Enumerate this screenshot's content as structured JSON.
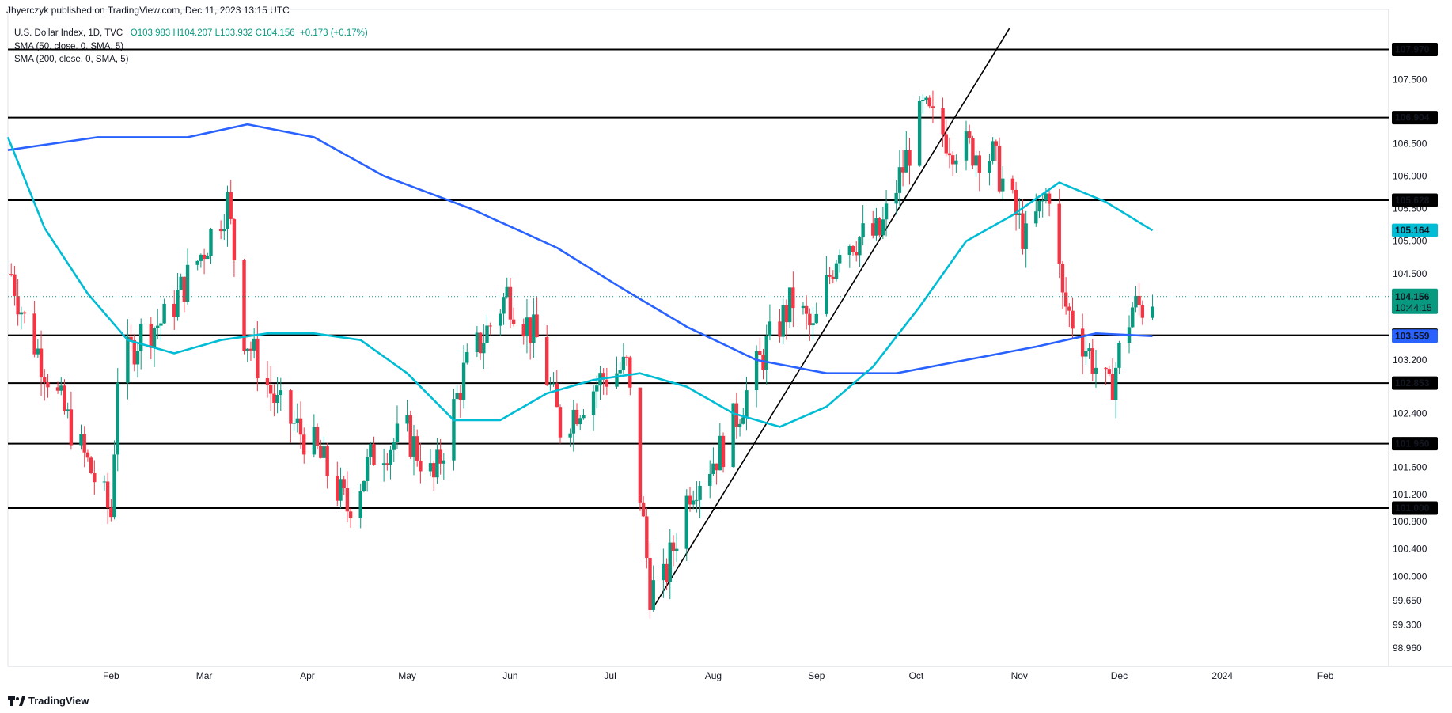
{
  "header": {
    "published": "Jhyerczyk published on TradingView.com, Dec 11, 2023 13:15 UTC"
  },
  "legend": {
    "symbol": "U.S. Dollar Index, 1D, TVC",
    "ohlc": "O103.983  H104.207  L103.932  C104.156",
    "change": "+0.173 (+0.17%)",
    "sma50": "SMA (50, close, 0, SMA, 5)",
    "sma200": "SMA (200, close, 0, SMA, 5)"
  },
  "brand": {
    "name": "TradingView",
    "logo_icon": "tradingview-logo-icon"
  },
  "colors": {
    "up": "#089981",
    "down": "#f23645",
    "sma50": "#00bcd4",
    "sma200": "#2962ff",
    "level": "#000000",
    "trendline": "#000000",
    "price_line": "#089981"
  },
  "chart_data": {
    "type": "candlestick",
    "y_scale": "log",
    "ylim": [
      98.7,
      108.5
    ],
    "y_ticks": [
      98.96,
      99.3,
      99.65,
      100.0,
      100.4,
      100.8,
      101.2,
      101.6,
      102.0,
      102.4,
      102.8,
      103.2,
      103.6,
      104.0,
      104.5,
      105.0,
      105.5,
      106.0,
      106.5,
      107.0,
      107.5
    ],
    "y_tick_labels": [
      "98.960",
      "99.300",
      "99.650",
      "100.000",
      "100.400",
      "100.800",
      "101.200",
      "101.600",
      "",
      "102.400",
      "",
      "103.200",
      "",
      "",
      "104.500",
      "105.000",
      "105.500",
      "106.000",
      "106.500",
      "",
      "107.500"
    ],
    "x_range": [
      "2023-01-01",
      "2024-02-20"
    ],
    "x_ticks": [
      {
        "date": "2023-02-01",
        "label": "Feb"
      },
      {
        "date": "2023-03-01",
        "label": "Mar"
      },
      {
        "date": "2023-04-01",
        "label": "Apr"
      },
      {
        "date": "2023-05-01",
        "label": "May"
      },
      {
        "date": "2023-06-01",
        "label": "Jun"
      },
      {
        "date": "2023-07-01",
        "label": "Jul"
      },
      {
        "date": "2023-08-01",
        "label": "Aug"
      },
      {
        "date": "2023-09-01",
        "label": "Sep"
      },
      {
        "date": "2023-10-01",
        "label": "Oct"
      },
      {
        "date": "2023-11-01",
        "label": "Nov"
      },
      {
        "date": "2023-12-01",
        "label": "Dec"
      },
      {
        "date": "2024-01-01",
        "label": "2024"
      },
      {
        "date": "2024-02-01",
        "label": "Feb"
      }
    ],
    "levels": [
      107.97,
      106.904,
      105.628,
      103.572,
      102.853,
      101.95,
      101.0
    ],
    "level_labels": [
      "107.970",
      "106.904",
      "105.628",
      "103.572",
      "102.853",
      "101.950",
      "101.000"
    ],
    "last_price": {
      "value": 104.156,
      "label": "104.156",
      "countdown": "10:44:15"
    },
    "sma50_last": {
      "value": 105.164,
      "label": "105.164"
    },
    "sma200_last": {
      "value": 103.559,
      "label": "103.559"
    },
    "trendline": {
      "from": {
        "date": "2023-07-14",
        "value": 99.55
      },
      "to": {
        "date": "2023-10-29",
        "value": 108.3
      }
    },
    "key_closes": [
      {
        "date": "2023-01-02",
        "close": 104.5
      },
      {
        "date": "2023-01-06",
        "close": 103.8
      },
      {
        "date": "2023-01-18",
        "close": 102.4
      },
      {
        "date": "2023-02-01",
        "close": 100.9
      },
      {
        "date": "2023-02-03",
        "close": 103.0
      },
      {
        "date": "2023-02-10",
        "close": 103.6
      },
      {
        "date": "2023-02-17",
        "close": 103.8
      },
      {
        "date": "2023-02-27",
        "close": 104.7
      },
      {
        "date": "2023-03-08",
        "close": 105.6
      },
      {
        "date": "2023-03-13",
        "close": 103.6
      },
      {
        "date": "2023-03-23",
        "close": 102.5
      },
      {
        "date": "2023-04-03",
        "close": 101.9
      },
      {
        "date": "2023-04-13",
        "close": 101.0
      },
      {
        "date": "2023-04-21",
        "close": 101.8
      },
      {
        "date": "2023-05-01",
        "close": 102.1
      },
      {
        "date": "2023-05-09",
        "close": 101.4
      },
      {
        "date": "2023-05-18",
        "close": 103.0
      },
      {
        "date": "2023-05-31",
        "close": 104.2
      },
      {
        "date": "2023-06-09",
        "close": 103.5
      },
      {
        "date": "2023-06-16",
        "close": 102.2
      },
      {
        "date": "2023-06-28",
        "close": 102.9
      },
      {
        "date": "2023-07-06",
        "close": 103.1
      },
      {
        "date": "2023-07-13",
        "close": 99.8
      },
      {
        "date": "2023-07-17",
        "close": 99.9
      },
      {
        "date": "2023-07-25",
        "close": 101.3
      },
      {
        "date": "2023-08-04",
        "close": 101.9
      },
      {
        "date": "2023-08-17",
        "close": 103.4
      },
      {
        "date": "2023-08-25",
        "close": 104.1
      },
      {
        "date": "2023-08-31",
        "close": 103.6
      },
      {
        "date": "2023-09-08",
        "close": 105.0
      },
      {
        "date": "2023-09-20",
        "close": 105.1
      },
      {
        "date": "2023-10-03",
        "close": 107.0
      },
      {
        "date": "2023-10-12",
        "close": 106.5
      },
      {
        "date": "2023-10-24",
        "close": 106.3
      },
      {
        "date": "2023-11-03",
        "close": 105.0
      },
      {
        "date": "2023-11-10",
        "close": 105.8
      },
      {
        "date": "2023-11-14",
        "close": 104.1
      },
      {
        "date": "2023-11-21",
        "close": 103.4
      },
      {
        "date": "2023-11-28",
        "close": 102.7
      },
      {
        "date": "2023-12-01",
        "close": 103.3
      },
      {
        "date": "2023-12-05",
        "close": 104.0
      },
      {
        "date": "2023-12-08",
        "close": 104.0
      },
      {
        "date": "2023-12-11",
        "close": 104.156
      }
    ],
    "sma50_path": [
      {
        "date": "2023-01-01",
        "value": 106.6
      },
      {
        "date": "2023-01-12",
        "value": 105.2
      },
      {
        "date": "2023-01-25",
        "value": 104.2
      },
      {
        "date": "2023-02-06",
        "value": 103.5
      },
      {
        "date": "2023-02-20",
        "value": 103.3
      },
      {
        "date": "2023-03-06",
        "value": 103.5
      },
      {
        "date": "2023-03-20",
        "value": 103.6
      },
      {
        "date": "2023-04-03",
        "value": 103.6
      },
      {
        "date": "2023-04-17",
        "value": 103.5
      },
      {
        "date": "2023-05-01",
        "value": 103.0
      },
      {
        "date": "2023-05-15",
        "value": 102.3
      },
      {
        "date": "2023-05-29",
        "value": 102.3
      },
      {
        "date": "2023-06-12",
        "value": 102.7
      },
      {
        "date": "2023-06-26",
        "value": 102.9
      },
      {
        "date": "2023-07-10",
        "value": 103.0
      },
      {
        "date": "2023-07-24",
        "value": 102.8
      },
      {
        "date": "2023-08-07",
        "value": 102.4
      },
      {
        "date": "2023-08-21",
        "value": 102.2
      },
      {
        "date": "2023-09-04",
        "value": 102.5
      },
      {
        "date": "2023-09-18",
        "value": 103.1
      },
      {
        "date": "2023-10-02",
        "value": 104.0
      },
      {
        "date": "2023-10-16",
        "value": 105.0
      },
      {
        "date": "2023-10-30",
        "value": 105.4
      },
      {
        "date": "2023-11-13",
        "value": 105.9
      },
      {
        "date": "2023-11-27",
        "value": 105.6
      },
      {
        "date": "2023-12-11",
        "value": 105.164
      }
    ],
    "sma200_path": [
      {
        "date": "2023-01-01",
        "value": 106.4
      },
      {
        "date": "2023-01-28",
        "value": 106.6
      },
      {
        "date": "2023-02-24",
        "value": 106.6
      },
      {
        "date": "2023-03-14",
        "value": 106.8
      },
      {
        "date": "2023-04-03",
        "value": 106.6
      },
      {
        "date": "2023-04-24",
        "value": 106.0
      },
      {
        "date": "2023-05-20",
        "value": 105.5
      },
      {
        "date": "2023-06-15",
        "value": 104.9
      },
      {
        "date": "2023-07-04",
        "value": 104.3
      },
      {
        "date": "2023-07-24",
        "value": 103.7
      },
      {
        "date": "2023-08-14",
        "value": 103.2
      },
      {
        "date": "2023-09-04",
        "value": 103.0
      },
      {
        "date": "2023-09-25",
        "value": 103.0
      },
      {
        "date": "2023-10-16",
        "value": 103.2
      },
      {
        "date": "2023-11-06",
        "value": 103.4
      },
      {
        "date": "2023-11-24",
        "value": 103.6
      },
      {
        "date": "2023-12-11",
        "value": 103.559
      }
    ]
  }
}
